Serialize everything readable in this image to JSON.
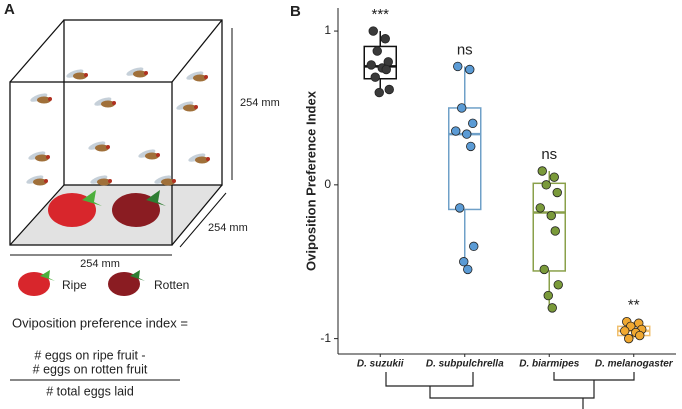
{
  "diagram": {
    "panel_label": "A",
    "height_label": "254 mm",
    "depth_label": "254 mm",
    "width_label": "254 mm",
    "legend": [
      "Ripe",
      "Rotten"
    ],
    "formula": {
      "lhs": "Oviposition preference index =",
      "numerator": [
        "# eggs on ripe fruit -",
        "# eggs on rotten fruit"
      ],
      "denominator": "# total eggs laid"
    }
  },
  "chart_data": {
    "type": "box",
    "panel_label": "B",
    "y_label": "Oviposition Preference Index",
    "categories": [
      "D. suzukii",
      "D. subpulchrella",
      "D. biarmipes",
      "D. melanogaster"
    ],
    "annotations": [
      "***",
      "ns",
      "ns",
      "**"
    ],
    "colors": [
      "#3a3a3a",
      "#5b9bd5",
      "#7a9a3a",
      "#f0a830"
    ],
    "box_colors": [
      "#111111",
      "#6fa0c8",
      "#8aa04a",
      "#f0c070"
    ],
    "boxes": [
      {
        "min": 0.59,
        "q1": 0.69,
        "median": 0.77,
        "q3": 0.9,
        "max": 1.0
      },
      {
        "min": -0.56,
        "q1": -0.16,
        "median": 0.33,
        "q3": 0.5,
        "max": 0.77
      },
      {
        "min": -0.82,
        "q1": -0.56,
        "median": -0.18,
        "q3": 0.01,
        "max": 0.09
      },
      {
        "min": -1.0,
        "q1": -0.98,
        "median": -0.95,
        "q3": -0.92,
        "max": -0.89
      }
    ],
    "points": [
      [
        1.0,
        0.95,
        0.87,
        0.8,
        0.78,
        0.76,
        0.75,
        0.7,
        0.62,
        0.6
      ],
      [
        0.77,
        0.75,
        0.5,
        0.4,
        0.35,
        0.33,
        0.25,
        -0.15,
        -0.4,
        -0.5,
        -0.55
      ],
      [
        0.09,
        0.05,
        0.0,
        -0.05,
        -0.15,
        -0.2,
        -0.3,
        -0.55,
        -0.65,
        -0.72,
        -0.8
      ],
      [
        -0.89,
        -0.9,
        -0.92,
        -0.94,
        -0.95,
        -0.96,
        -0.98,
        -1.0
      ]
    ],
    "ylim": [
      -1.1,
      1.15
    ],
    "yticks": [
      -1,
      0,
      1
    ]
  }
}
